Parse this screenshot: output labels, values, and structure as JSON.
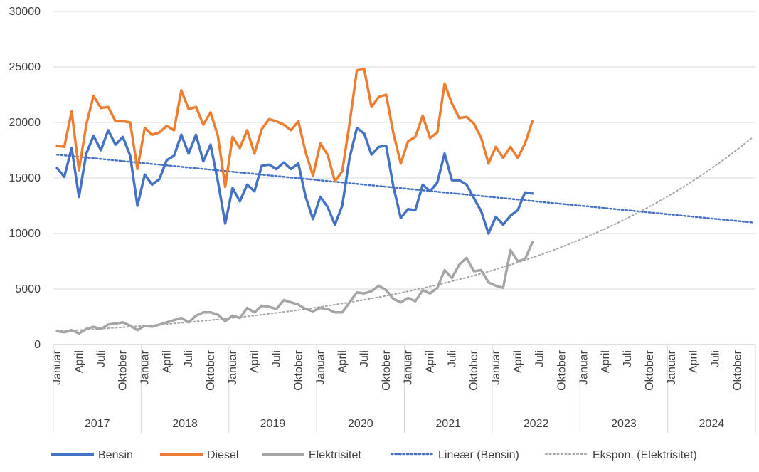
{
  "chart_data": {
    "type": "line",
    "ylim": [
      0,
      30000
    ],
    "yticks": [
      "0",
      "5000",
      "10000",
      "15000",
      "20000",
      "25000",
      "30000"
    ],
    "month_labels": [
      "Januar",
      "April",
      "Juli",
      "Oktober"
    ],
    "years": [
      "2017",
      "2018",
      "2019",
      "2020",
      "2021",
      "2022",
      "2023",
      "2024"
    ],
    "series": [
      {
        "name": "Bensin",
        "color": "#4472c4",
        "values": [
          15900,
          15100,
          17700,
          13300,
          17200,
          18800,
          17500,
          19300,
          18000,
          18700,
          17000,
          12500,
          15300,
          14400,
          14900,
          16600,
          17000,
          18900,
          17200,
          18900,
          16500,
          18000,
          14700,
          10900,
          14100,
          12900,
          14400,
          13800,
          16100,
          16200,
          15800,
          16400,
          15800,
          16300,
          13300,
          11300,
          13300,
          12400,
          10800,
          12500,
          16800,
          19500,
          19000,
          17100,
          17800,
          17900,
          14200,
          11400,
          12200,
          12100,
          14400,
          13800,
          14600,
          17200,
          14800,
          14800,
          14400,
          13200,
          12000,
          10000,
          11500,
          10800,
          11600,
          12100,
          13700,
          13600
        ]
      },
      {
        "name": "Diesel",
        "color": "#ed7d31",
        "values": [
          17900,
          17800,
          21000,
          15700,
          19800,
          22400,
          21300,
          21400,
          20100,
          20100,
          20000,
          15800,
          19500,
          18900,
          19100,
          19700,
          19300,
          22900,
          21200,
          21400,
          19800,
          20900,
          18800,
          14200,
          18700,
          17700,
          19300,
          17200,
          19400,
          20300,
          20100,
          19800,
          19300,
          20100,
          17300,
          15200,
          18100,
          17100,
          14700,
          15600,
          19900,
          24700,
          24800,
          21400,
          22300,
          22500,
          19000,
          16300,
          18300,
          18700,
          20600,
          18600,
          19100,
          23500,
          21700,
          20400,
          20500,
          19900,
          18600,
          16300,
          17800,
          16800,
          17800,
          16800,
          18100,
          20100
        ]
      },
      {
        "name": "Elektrisitet",
        "color": "#a5a5a5",
        "values": [
          1200,
          1100,
          1300,
          1000,
          1400,
          1600,
          1400,
          1800,
          1900,
          2000,
          1700,
          1300,
          1700,
          1600,
          1800,
          2000,
          2200,
          2400,
          2000,
          2600,
          2900,
          2900,
          2700,
          2100,
          2600,
          2400,
          3300,
          2900,
          3500,
          3400,
          3200,
          4000,
          3800,
          3600,
          3200,
          3000,
          3300,
          3200,
          2900,
          2900,
          3800,
          4700,
          4600,
          4800,
          5300,
          4900,
          4100,
          3800,
          4200,
          3900,
          4900,
          4600,
          5100,
          6700,
          6000,
          7200,
          7800,
          6600,
          6700,
          5600,
          5300,
          5100,
          8500,
          7500,
          7700,
          9200
        ]
      }
    ],
    "trendlines": [
      {
        "name": "Lineær (Bensin)",
        "type": "linear",
        "color": "#4472c4",
        "start_value": 17100,
        "end_value": 11000,
        "x_range": [
          0,
          95
        ]
      },
      {
        "name": "Ekspon. (Elektrisitet)",
        "type": "exponential",
        "color": "#a5a5a5",
        "start_value": 1200,
        "end_value": 18600,
        "x_range": [
          0,
          95
        ]
      }
    ],
    "legend": [
      "Bensin",
      "Diesel",
      "Elektrisitet",
      "Lineær (Bensin)",
      "Ekspon. (Elektrisitet)"
    ],
    "legend_position": "bottom"
  }
}
